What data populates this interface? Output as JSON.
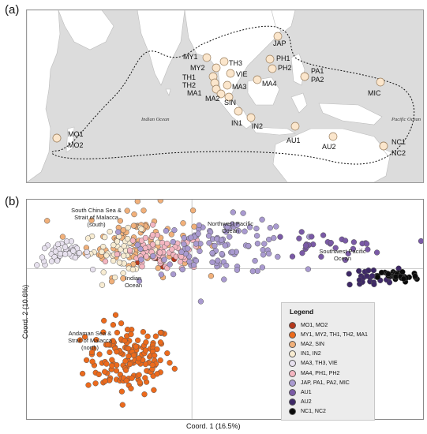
{
  "panel_a": {
    "label": "(a)",
    "ocean_labels": [
      "Indian Ocean",
      "Pacific Ocean"
    ],
    "sites": [
      {
        "label": "JAP"
      },
      {
        "label": "MY1"
      },
      {
        "label": "TH3"
      },
      {
        "label": "PH1"
      },
      {
        "label": "MY2"
      },
      {
        "label": "VIE"
      },
      {
        "label": "PH2"
      },
      {
        "label": "PA1"
      },
      {
        "label": "PA2"
      },
      {
        "label": "TH1"
      },
      {
        "label": "TH2"
      },
      {
        "label": "MA3"
      },
      {
        "label": "MA4"
      },
      {
        "label": "MA1"
      },
      {
        "label": "MA2"
      },
      {
        "label": "SIN"
      },
      {
        "label": "MIC"
      },
      {
        "label": "IN1"
      },
      {
        "label": "IN2"
      },
      {
        "label": "MO1"
      },
      {
        "label": "MO2"
      },
      {
        "label": "AU1"
      },
      {
        "label": "AU2"
      },
      {
        "label": "NC1"
      },
      {
        "label": "NC2"
      }
    ],
    "colors": {
      "land": "#ffffff",
      "sea": "#dcdcdc",
      "site_fill": "#fbe6cc",
      "site_stroke": "#9c8060"
    }
  },
  "panel_b": {
    "label": "(b)",
    "xlabel": "Coord. 1 (16.5%)",
    "ylabel": "Coord. 2 (10.6%)",
    "region_labels": [
      "South China Sea &\nStrait of Malacca\n(south)",
      "Northwest Pacific\nOcean",
      "Southwest Pacific\nOcean",
      "Indian\nOcean",
      "Andaman Sea &\nStrait of Malacca\n(north)"
    ],
    "legend": {
      "title": "Legend",
      "items": [
        {
          "label": "MO1, MO2",
          "color": "#b5381c"
        },
        {
          "label": "MY1, MY2, TH1, TH2, MA1",
          "color": "#ec6a1c"
        },
        {
          "label": "MA2, SIN",
          "color": "#f1b07a"
        },
        {
          "label": "IN1, IN2",
          "color": "#f8ecd2"
        },
        {
          "label": "MA3, TH3, VIE",
          "color": "#e7e1ee"
        },
        {
          "label": "MA4, PH1, PH2",
          "color": "#f4b6c1"
        },
        {
          "label": "JAP, PA1, PA2, MIC",
          "color": "#a99ad0"
        },
        {
          "label": "AU1",
          "color": "#7a5aa6"
        },
        {
          "label": "AU2",
          "color": "#3e2867"
        },
        {
          "label": "NC1, NC2",
          "color": "#0a0a0a"
        }
      ]
    }
  },
  "chart_data": {
    "type": "scatter",
    "title": "",
    "xlabel": "Coord. 1 (16.5%)",
    "ylabel": "Coord. 2 (10.6%)",
    "xlim": [
      -1.0,
      1.4
    ],
    "ylim": [
      -1.2,
      0.55
    ],
    "grid": false,
    "legend_position": "bottom-right",
    "series": [
      {
        "name": "MO1, MO2",
        "color": "#b5381c",
        "n": 10,
        "center": [
          -0.08,
          0.07
        ],
        "spread": [
          0.12,
          0.04
        ]
      },
      {
        "name": "MY1, MY2, TH1, TH2, MA1",
        "color": "#ec6a1c",
        "n": 160,
        "center": [
          -0.38,
          -0.72
        ],
        "spread": [
          0.13,
          0.14
        ]
      },
      {
        "name": "MA2, SIN",
        "color": "#f1b07a",
        "n": 90,
        "center": [
          -0.32,
          0.22
        ],
        "spread": [
          0.16,
          0.14
        ]
      },
      {
        "name": "IN1, IN2",
        "color": "#f8ecd2",
        "n": 50,
        "center": [
          -0.42,
          0.14
        ],
        "spread": [
          0.12,
          0.08
        ]
      },
      {
        "name": "MA3, TH3, VIE",
        "color": "#e7e1ee",
        "n": 45,
        "center": [
          -0.78,
          0.12
        ],
        "spread": [
          0.08,
          0.05
        ]
      },
      {
        "name": "MA4, PH1, PH2",
        "color": "#f4b6c1",
        "n": 70,
        "center": [
          -0.18,
          0.12
        ],
        "spread": [
          0.13,
          0.07
        ]
      },
      {
        "name": "JAP, PA1, PA2, MIC",
        "color": "#a99ad0",
        "n": 110,
        "center": [
          0.18,
          0.18
        ],
        "spread": [
          0.22,
          0.11
        ]
      },
      {
        "name": "AU1",
        "color": "#7a5aa6",
        "n": 30,
        "center": [
          0.82,
          0.18
        ],
        "spread": [
          0.18,
          0.05
        ]
      },
      {
        "name": "AU2",
        "color": "#3e2867",
        "n": 25,
        "center": [
          1.05,
          -0.08
        ],
        "spread": [
          0.1,
          0.04
        ]
      },
      {
        "name": "NC1, NC2",
        "color": "#0a0a0a",
        "n": 40,
        "center": [
          1.25,
          -0.06
        ],
        "spread": [
          0.06,
          0.025
        ]
      }
    ]
  }
}
